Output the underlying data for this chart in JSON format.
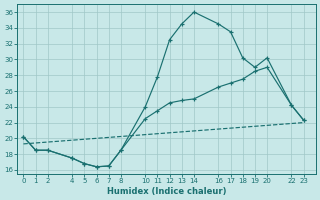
{
  "xlabel": "Humidex (Indice chaleur)",
  "bg_color": "#c8e8e8",
  "grid_color": "#a0c8c8",
  "line_color": "#1a7070",
  "xlim": [
    -0.5,
    24.0
  ],
  "ylim": [
    15.5,
    37.0
  ],
  "yticks": [
    16,
    18,
    20,
    22,
    24,
    26,
    28,
    30,
    32,
    34,
    36
  ],
  "xticks": [
    0,
    1,
    2,
    4,
    5,
    6,
    7,
    8,
    10,
    11,
    12,
    13,
    14,
    16,
    17,
    18,
    19,
    20,
    22,
    23
  ],
  "curve1_x": [
    0,
    1,
    2,
    4,
    5,
    6,
    7,
    8,
    10,
    11,
    12,
    13,
    14,
    16,
    17,
    18,
    19,
    20,
    22,
    23
  ],
  "curve1_y": [
    20.2,
    18.5,
    18.5,
    17.5,
    16.8,
    16.4,
    16.5,
    18.5,
    24.0,
    27.8,
    32.5,
    34.5,
    36.0,
    34.5,
    33.5,
    30.2,
    29.0,
    30.2,
    24.2,
    22.3
  ],
  "curve2_x": [
    0,
    1,
    2,
    4,
    5,
    6,
    7,
    8,
    10,
    11,
    12,
    13,
    14,
    16,
    17,
    18,
    19,
    20,
    22,
    23
  ],
  "curve2_y": [
    20.2,
    18.5,
    18.5,
    17.5,
    16.8,
    16.4,
    16.5,
    18.5,
    22.5,
    23.5,
    24.5,
    24.8,
    25.0,
    26.5,
    27.0,
    27.5,
    28.5,
    29.0,
    24.2,
    22.3
  ],
  "curve3_x": [
    0,
    23
  ],
  "curve3_y": [
    19.3,
    22.0
  ]
}
